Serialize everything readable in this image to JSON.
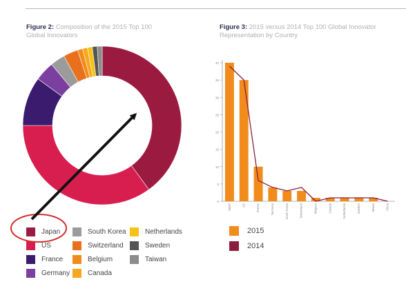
{
  "figure2": {
    "label": "Figure 2:",
    "caption": "Composition of the 2015 Top 100 Global Innovators"
  },
  "figure3": {
    "label": "Figure 3:",
    "caption": "2015 versus 2014 Top 100 Global Innovator Representation by Country"
  },
  "chart_data": [
    {
      "type": "pie",
      "variant": "donut",
      "title": "Composition of the 2015 Top 100 Global Innovators",
      "slices": [
        {
          "label": "Japan",
          "value": 40,
          "color": "#9b1b40"
        },
        {
          "label": "US",
          "value": 35,
          "color": "#d81e4f"
        },
        {
          "label": "France",
          "value": 10,
          "color": "#3b1b6e"
        },
        {
          "label": "Germany",
          "value": 4,
          "color": "#7b3fa0"
        },
        {
          "label": "South Korea",
          "value": 3,
          "color": "#9b9b9b"
        },
        {
          "label": "Switzerland",
          "value": 3,
          "color": "#e9701d"
        },
        {
          "label": "Belgium",
          "value": 1,
          "color": "#f08b1c"
        },
        {
          "label": "Canada",
          "value": 1,
          "color": "#f7a81c"
        },
        {
          "label": "Netherlands",
          "value": 1,
          "color": "#f6c21a"
        },
        {
          "label": "Sweden",
          "value": 1,
          "color": "#555555"
        },
        {
          "label": "Taiwan",
          "value": 1,
          "color": "#8c8c8c"
        }
      ],
      "legend_position": "bottom"
    },
    {
      "type": "bar",
      "title": "2015 versus 2014 Top 100 Global Innovator Representation by Country",
      "categories": [
        "Japan",
        "US",
        "France",
        "Germany",
        "South Korea",
        "Switzerland",
        "Belgium",
        "Canada",
        "Netherlands",
        "Sweden",
        "Taiwan",
        "China"
      ],
      "series": [
        {
          "name": "2015",
          "render": "bar",
          "color": "#f08b1c",
          "values": [
            40,
            35,
            10,
            4,
            3,
            3,
            1,
            1,
            1,
            1,
            1,
            0
          ]
        },
        {
          "name": "2014",
          "render": "line",
          "color": "#8b1e3f",
          "values": [
            39,
            35,
            6,
            4,
            3,
            4,
            0,
            1,
            1,
            1,
            1,
            0
          ]
        }
      ],
      "yticks": [
        0,
        5,
        10,
        15,
        20,
        25,
        30,
        35,
        40
      ],
      "ylim": [
        0,
        40
      ],
      "grid": false,
      "legend_position": "bottom-left"
    }
  ]
}
